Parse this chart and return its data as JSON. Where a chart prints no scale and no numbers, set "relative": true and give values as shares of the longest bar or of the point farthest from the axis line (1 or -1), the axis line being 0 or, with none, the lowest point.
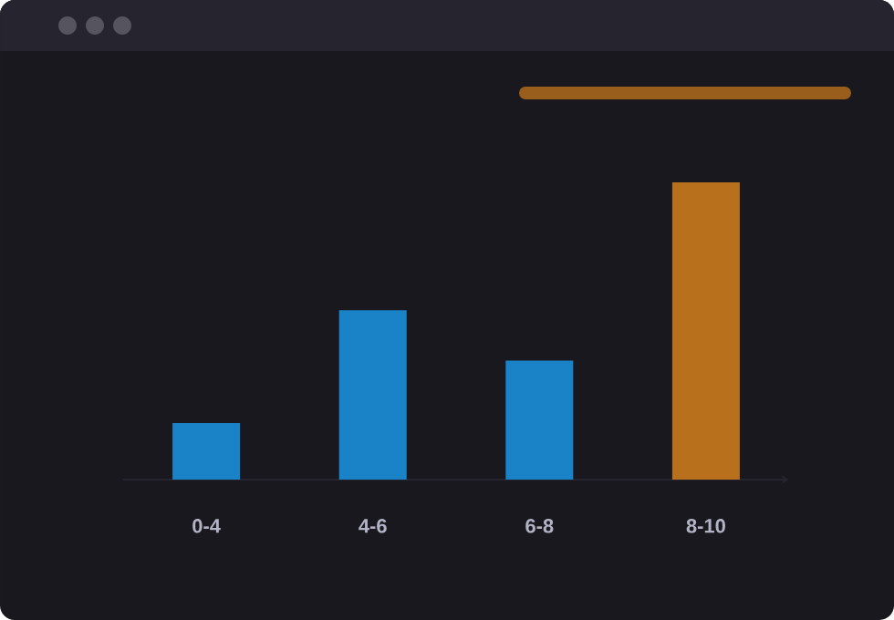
{
  "chart_data": {
    "type": "bar",
    "relative": true,
    "categories": [
      "0-4",
      "4-6",
      "6-8",
      "8-10"
    ],
    "values": [
      0.19,
      0.57,
      0.4,
      1
    ],
    "colors": [
      "#1a82c6",
      "#1a82c6",
      "#1a82c6",
      "#b8701c"
    ]
  }
}
